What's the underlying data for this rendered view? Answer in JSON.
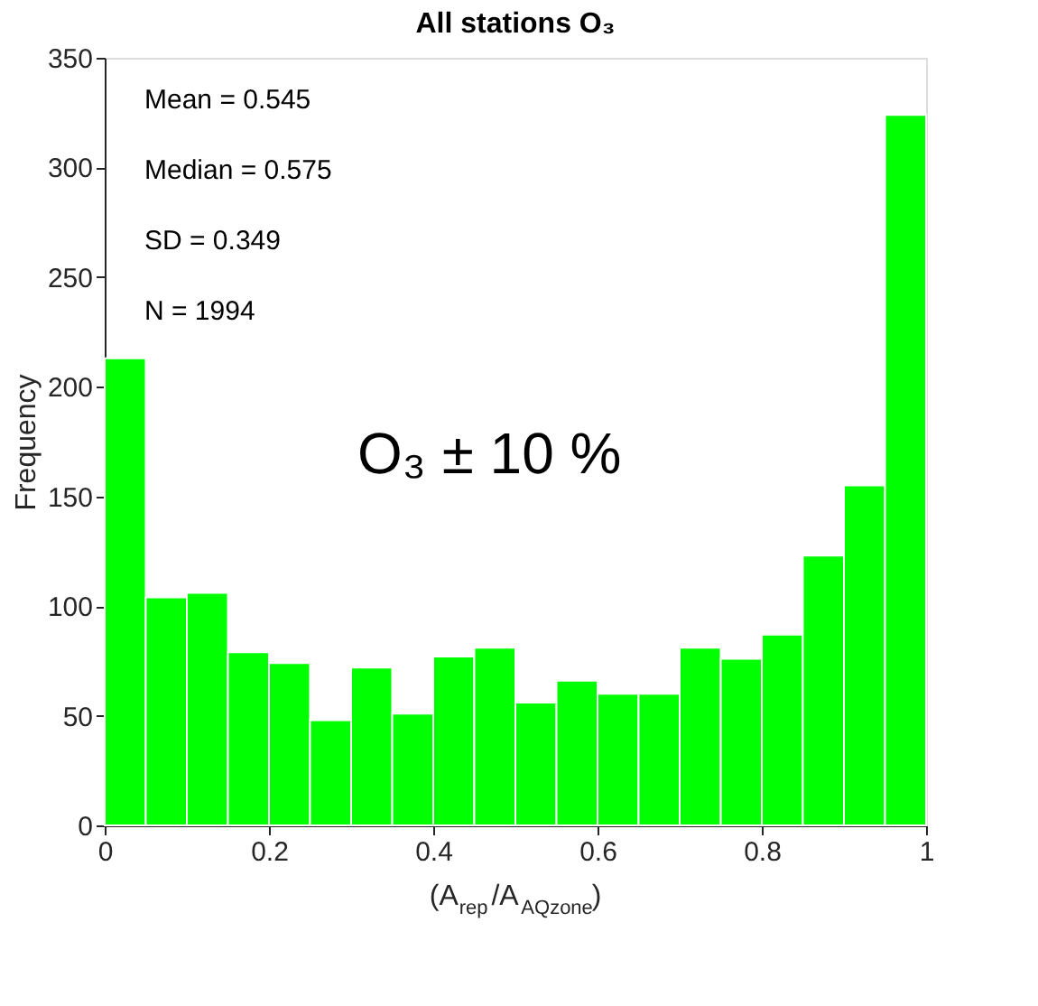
{
  "chart_data": {
    "type": "histogram",
    "title": "All stations O₃",
    "xlabel": "(A$_{rep}$/A$_{AQzone}$)",
    "ylabel": "Frequency",
    "bins": [
      0,
      0.05,
      0.1,
      0.15,
      0.2,
      0.25,
      0.3,
      0.35,
      0.4,
      0.45,
      0.5,
      0.55,
      0.6,
      0.65,
      0.7,
      0.75,
      0.8,
      0.85,
      0.9,
      0.95,
      1
    ],
    "values": [
      213,
      104,
      106,
      79,
      74,
      48,
      72,
      51,
      77,
      81,
      56,
      66,
      60,
      60,
      81,
      76,
      87,
      123,
      155,
      324
    ],
    "color": "#00ff00",
    "xlim": [
      0,
      1
    ],
    "xticks": [
      0,
      0.2,
      0.4,
      0.6,
      0.8,
      1
    ],
    "ylim": [
      0,
      350
    ],
    "yticks": [
      0,
      50,
      100,
      150,
      200,
      250,
      300,
      350
    ],
    "grid": false,
    "annotations": [
      "Mean  = 0.545",
      "Median = 0.575",
      "SD = 0.349",
      "N  = 1994",
      "O₃  ± 10 %"
    ]
  }
}
